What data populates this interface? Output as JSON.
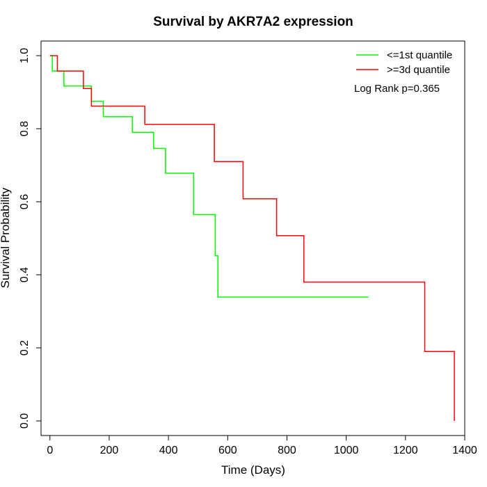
{
  "chart_data": {
    "type": "line",
    "title": "Survival by AKR7A2 expression",
    "xlabel": "Time (Days)",
    "ylabel": "Survival Probability",
    "xlim": [
      -30,
      1400
    ],
    "ylim": [
      -0.04,
      1.04
    ],
    "xticks": [
      0,
      200,
      400,
      600,
      800,
      1000,
      1200,
      1400
    ],
    "yticks": [
      0.0,
      0.2,
      0.4,
      0.6,
      0.8,
      1.0
    ],
    "xtick_labels": [
      "0",
      "200",
      "400",
      "600",
      "800",
      "1000",
      "1200",
      "1400"
    ],
    "ytick_labels": [
      "0.0",
      "0.2",
      "0.4",
      "0.6",
      "0.8",
      "1.0"
    ],
    "grid": false,
    "legend_position": "top-right",
    "annotation": "Log Rank p=0.365",
    "series": [
      {
        "name": "<=1st quantile",
        "color": "#00ff00",
        "step": true,
        "x": [
          0,
          8,
          47,
          133,
          140,
          180,
          278,
          350,
          390,
          485,
          558,
          567,
          1075
        ],
        "y": [
          1.0,
          0.958,
          0.917,
          0.917,
          0.875,
          0.833,
          0.79,
          0.746,
          0.678,
          0.565,
          0.452,
          0.339,
          0.339
        ]
      },
      {
        "name": ">=3d quantile",
        "color": "#ff0000",
        "step": true,
        "x": [
          0,
          25,
          113,
          140,
          320,
          555,
          652,
          765,
          857,
          1265,
          1365
        ],
        "y": [
          1.0,
          0.958,
          0.91,
          0.862,
          0.812,
          0.71,
          0.608,
          0.507,
          0.38,
          0.19,
          0.0
        ]
      }
    ]
  }
}
